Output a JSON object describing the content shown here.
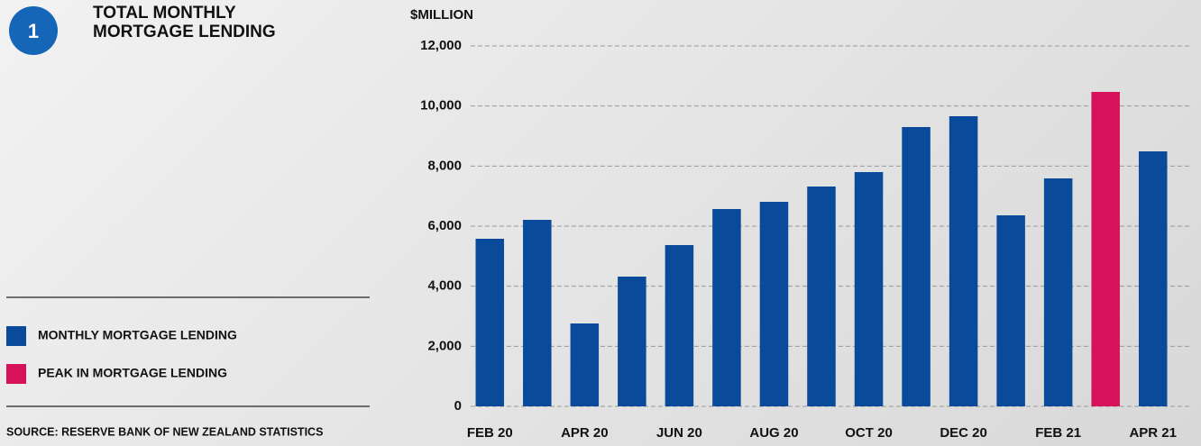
{
  "chart_data": {
    "type": "bar",
    "badge": "1",
    "title": "TOTAL MONTHLY MORTGAGE LENDING",
    "ylabel": "$MILLION",
    "source": "SOURCE: RESERVE BANK OF NEW ZEALAND STATISTICS",
    "categories": [
      "FEB 20",
      null,
      "APR 20",
      null,
      "JUN 20",
      null,
      "AUG 20",
      null,
      "OCT 20",
      null,
      "DEC 20",
      null,
      "FEB 21",
      null,
      "APR 21"
    ],
    "series": [
      {
        "name": "MONTHLY MORTGAGE LENDING",
        "color": "#0a4a9a",
        "values": [
          5580,
          6210,
          2760,
          4320,
          5370,
          6570,
          6810,
          7320,
          7800,
          9300,
          9660,
          6360,
          7590,
          null,
          8490
        ]
      },
      {
        "name": "PEAK IN MORTGAGE LENDING",
        "color": "#d6125a",
        "values": [
          null,
          null,
          null,
          null,
          null,
          null,
          null,
          null,
          null,
          null,
          null,
          null,
          null,
          10470,
          null
        ]
      }
    ],
    "ylim": [
      0,
      12000
    ],
    "yticks": [
      0,
      {
        "value": 2000,
        "label": "2,000"
      },
      {
        "value": 4000,
        "label": "4,000"
      },
      {
        "value": 6000,
        "label": "6,000"
      },
      {
        "value": 8000,
        "label": "8,000"
      },
      {
        "value": 10000,
        "label": "10,000"
      },
      {
        "value": 12000,
        "label": "12,000"
      }
    ],
    "grid": true
  }
}
